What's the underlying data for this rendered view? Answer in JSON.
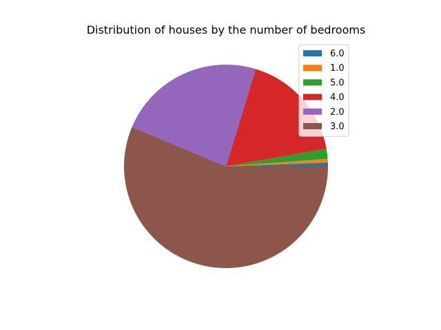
{
  "chart_data": {
    "type": "pie",
    "title": "Distribution of houses by the number of bedrooms",
    "categories": [
      "6.0",
      "1.0",
      "5.0",
      "4.0",
      "2.0",
      "3.0"
    ],
    "values": [
      0.6,
      0.6,
      1.6,
      17.5,
      23.4,
      56.3
    ],
    "colors": [
      "#1f77b4",
      "#ff7f0e",
      "#2ca02c",
      "#d62728",
      "#9467bd",
      "#8c564b"
    ],
    "start_angle_deg": 0,
    "direction": "counterclockwise",
    "legend": {
      "position": "top-right",
      "entries": [
        "6.0",
        "1.0",
        "5.0",
        "4.0",
        "2.0",
        "3.0"
      ]
    }
  }
}
